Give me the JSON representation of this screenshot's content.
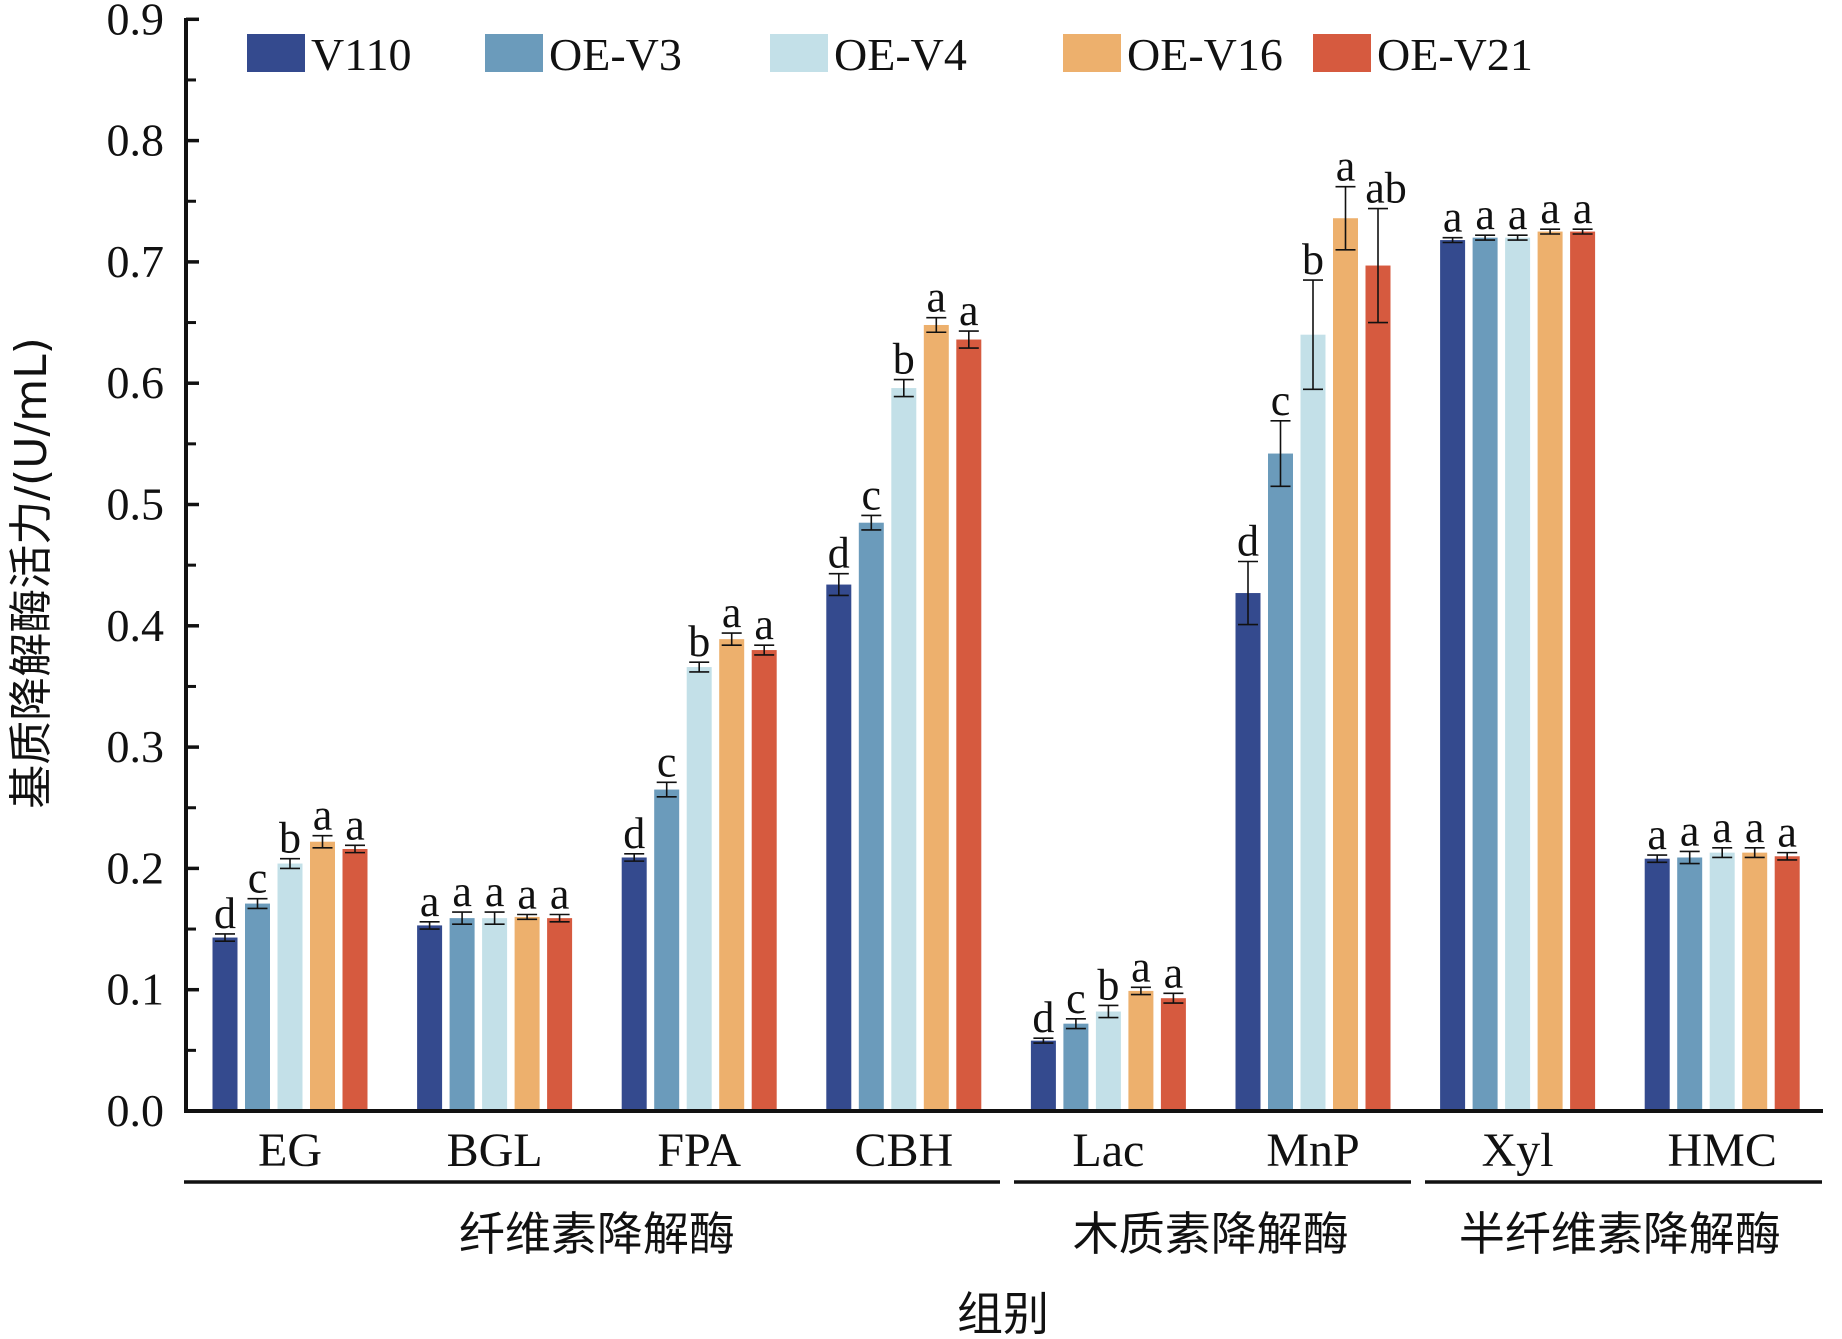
{
  "chart_data": {
    "type": "bar",
    "title": "",
    "xlabel": "组别",
    "ylabel": "基质降解酶活力/(U/mL)",
    "ylim": [
      0,
      0.9
    ],
    "yticks": [
      "0.0",
      "0.1",
      "0.2",
      "0.3",
      "0.4",
      "0.5",
      "0.6",
      "0.7",
      "0.8",
      "0.9"
    ],
    "grid": false,
    "legend_position": "top",
    "categories": [
      "EG",
      "BGL",
      "FPA",
      "CBH",
      "Lac",
      "MnP",
      "Xyl",
      "HMC"
    ],
    "category_groups": [
      {
        "label": "纤维素降解酶",
        "categories": [
          "EG",
          "BGL",
          "FPA",
          "CBH"
        ]
      },
      {
        "label": "木质素降解酶",
        "categories": [
          "Lac",
          "MnP"
        ]
      },
      {
        "label": "半纤维素降解酶",
        "categories": [
          "Xyl",
          "HMC"
        ]
      }
    ],
    "series": [
      {
        "name": "V110",
        "color": "#344a8e",
        "values": [
          0.143,
          0.153,
          0.209,
          0.434,
          0.058,
          0.427,
          0.718,
          0.208
        ],
        "errors": [
          0.003,
          0.003,
          0.003,
          0.009,
          0.002,
          0.026,
          0.002,
          0.003
        ],
        "letters": [
          "d",
          "a",
          "d",
          "d",
          "d",
          "d",
          "a",
          "a"
        ]
      },
      {
        "name": "OE-V3",
        "color": "#6b9bbb",
        "values": [
          0.171,
          0.159,
          0.265,
          0.485,
          0.072,
          0.542,
          0.72,
          0.209
        ],
        "errors": [
          0.004,
          0.005,
          0.006,
          0.006,
          0.004,
          0.027,
          0.002,
          0.005
        ],
        "letters": [
          "c",
          "a",
          "c",
          "c",
          "c",
          "c",
          "a",
          "a"
        ]
      },
      {
        "name": "OE-V4",
        "color": "#c3e0e8",
        "values": [
          0.204,
          0.159,
          0.366,
          0.596,
          0.082,
          0.64,
          0.72,
          0.213
        ],
        "errors": [
          0.004,
          0.005,
          0.004,
          0.007,
          0.005,
          0.045,
          0.002,
          0.004
        ],
        "letters": [
          "b",
          "a",
          "b",
          "b",
          "b",
          "b",
          "a",
          "a"
        ]
      },
      {
        "name": "OE-V16",
        "color": "#edb06d",
        "values": [
          0.222,
          0.16,
          0.389,
          0.648,
          0.099,
          0.736,
          0.725,
          0.213
        ],
        "errors": [
          0.005,
          0.002,
          0.005,
          0.006,
          0.003,
          0.026,
          0.002,
          0.004
        ],
        "letters": [
          "a",
          "a",
          "a",
          "a",
          "a",
          "a",
          "a",
          "a"
        ]
      },
      {
        "name": "OE-V21",
        "color": "#d65a3f",
        "values": [
          0.216,
          0.159,
          0.38,
          0.636,
          0.093,
          0.697,
          0.725,
          0.21
        ],
        "errors": [
          0.003,
          0.003,
          0.004,
          0.007,
          0.004,
          0.047,
          0.002,
          0.003
        ],
        "letters": [
          "a",
          "a",
          "a",
          "a",
          "a",
          "ab",
          "a",
          "a"
        ]
      }
    ]
  }
}
